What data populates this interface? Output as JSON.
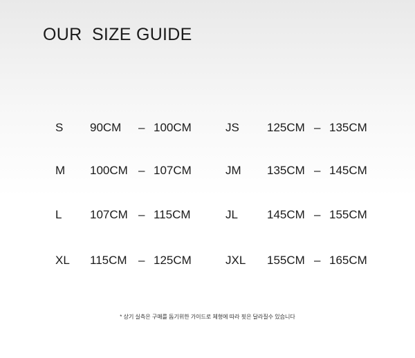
{
  "title": "OUR  SIZE GUIDE",
  "adult_sizes": [
    {
      "size": "S",
      "from": "90CM",
      "to": "100CM"
    },
    {
      "size": "M",
      "from": "100CM",
      "to": "107CM"
    },
    {
      "size": "L",
      "from": "107CM",
      "to": "115CM"
    },
    {
      "size": "XL",
      "from": "115CM",
      "to": "125CM"
    }
  ],
  "junior_sizes": [
    {
      "size": "JS",
      "from": "125CM",
      "to": "135CM"
    },
    {
      "size": "JM",
      "from": "135CM",
      "to": "145CM"
    },
    {
      "size": "JL",
      "from": "145CM",
      "to": "155CM"
    },
    {
      "size": "JXL",
      "from": "155CM",
      "to": "165CM"
    }
  ],
  "separator": "–",
  "note": "* 상기 실측은 구매를 돕기위한 가이드로 체형에 따라 핏은 달라질수 있습니다"
}
